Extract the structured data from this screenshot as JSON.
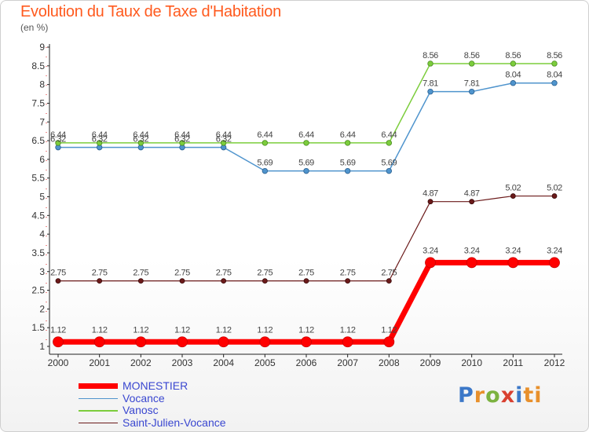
{
  "title": "Evolution du Taux de Taxe d'Habitation",
  "unit_label": "(en %)",
  "logo": [
    "P",
    "r",
    "o",
    "x",
    "i",
    "ti"
  ],
  "chart_data": {
    "type": "line",
    "title": "Evolution du Taux de Taxe d'Habitation",
    "ylabel": "(en %)",
    "xlabel": "",
    "ylim": [
      1,
      9
    ],
    "yticks": [
      "1",
      "1.5",
      "2",
      "2.5",
      "3",
      "3.5",
      "4",
      "4.5",
      "5",
      "5.5",
      "6",
      "6.5",
      "7",
      "7.5",
      "8",
      "8.5",
      "9"
    ],
    "x": [
      "2000",
      "2001",
      "2002",
      "2003",
      "2004",
      "2005",
      "2006",
      "2007",
      "2008",
      "2009",
      "2010",
      "2011",
      "2012"
    ],
    "grid": false,
    "legend_position": "bottom-left",
    "series": [
      {
        "name": "MONESTIER",
        "color": "#ff0000",
        "values": [
          1.12,
          1.12,
          1.12,
          1.12,
          1.12,
          1.12,
          1.12,
          1.12,
          1.12,
          3.24,
          3.24,
          3.24,
          3.24
        ],
        "labels": [
          "1.12",
          "1.12",
          "1.12",
          "1.12",
          "1.12",
          "1.12",
          "1.12",
          "1.12",
          "1.12",
          "3.24",
          "3.24",
          "3.24",
          "3.24"
        ]
      },
      {
        "name": "Vocance",
        "color": "#4f94cd",
        "values": [
          6.32,
          6.32,
          6.32,
          6.32,
          6.32,
          5.69,
          5.69,
          5.69,
          5.69,
          7.81,
          7.81,
          8.04,
          8.04
        ],
        "labels": [
          "6.32",
          "6.32",
          "6.32",
          "6.32",
          "6.32",
          "5.69",
          "5.69",
          "5.69",
          "5.69",
          "7.81",
          "7.81",
          "8.04",
          "8.04"
        ]
      },
      {
        "name": "Vanosc",
        "color": "#7ccd3c",
        "values": [
          6.44,
          6.44,
          6.44,
          6.44,
          6.44,
          6.44,
          6.44,
          6.44,
          6.44,
          8.56,
          8.56,
          8.56,
          8.56
        ],
        "labels": [
          "6.44",
          "6.44",
          "6.44",
          "6.44",
          "6.44",
          "6.44",
          "6.44",
          "6.44",
          "6.44",
          "8.56",
          "8.56",
          "8.56",
          "8.56"
        ]
      },
      {
        "name": "Saint-Julien-Vocance",
        "color": "#6b1a1a",
        "values": [
          2.75,
          2.75,
          2.75,
          2.75,
          2.75,
          2.75,
          2.75,
          2.75,
          2.75,
          4.87,
          4.87,
          5.02,
          5.02
        ],
        "labels": [
          "2.75",
          "2.75",
          "2.75",
          "2.75",
          "2.75",
          "2.75",
          "2.75",
          "2.75",
          "2.75",
          "4.87",
          "4.87",
          "5.02",
          "5.02"
        ]
      }
    ]
  }
}
